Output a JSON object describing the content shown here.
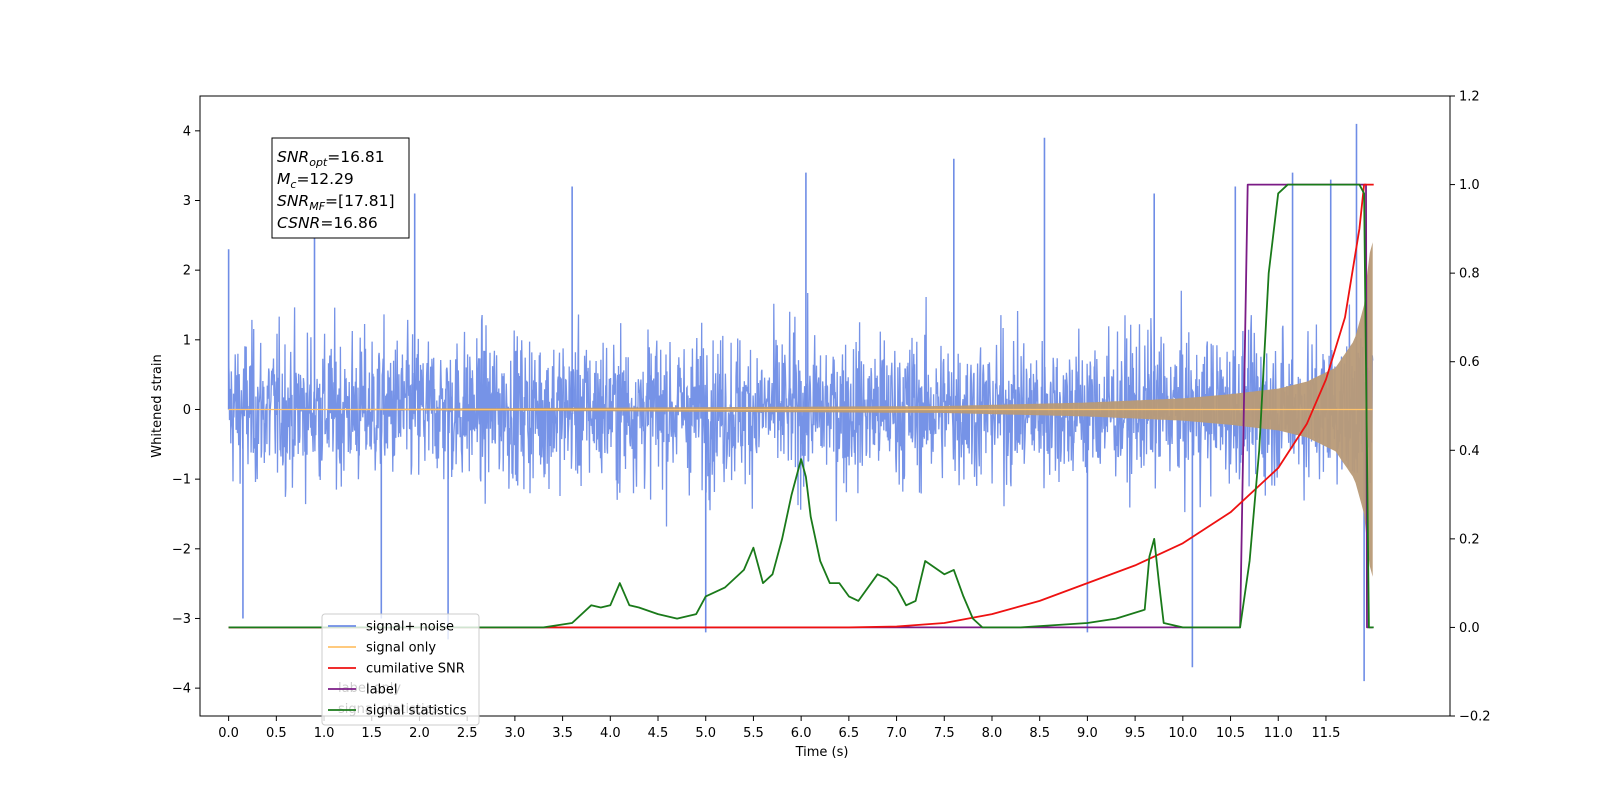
{
  "chart_data": {
    "type": "line",
    "xlabel": "Time (s)",
    "ylabel": "Whitened strain",
    "xlim": [
      -0.3,
      12.8
    ],
    "ylim": [
      -4.4,
      4.5
    ],
    "ylim_right": [
      -0.2,
      1.2
    ],
    "x_ticks": [
      "0.0",
      "0.5",
      "1.0",
      "1.5",
      "2.0",
      "2.5",
      "3.0",
      "3.5",
      "4.0",
      "4.5",
      "5.0",
      "5.5",
      "6.0",
      "6.5",
      "7.0",
      "7.5",
      "8.0",
      "8.5",
      "9.0",
      "9.5",
      "10.0",
      "10.5",
      "11.0",
      "11.5"
    ],
    "y_ticks_left": [
      "4",
      "3",
      "2",
      "1",
      "0",
      "−1",
      "−2",
      "−3",
      "−4"
    ],
    "y_ticks_right": [
      "1.2",
      "1.0",
      "0.8",
      "0.6",
      "0.4",
      "0.2",
      "0.0",
      "−0.2"
    ],
    "legend": {
      "position": "lower-left",
      "entries": [
        {
          "label": "signal+ noise",
          "color": "#6f8de6"
        },
        {
          "label": "signal only",
          "color": "#ffc36b"
        },
        {
          "label": "cumilative SNR",
          "color": "#ee1111"
        },
        {
          "label": "label",
          "color": "#7b1b86"
        },
        {
          "label": "signal statistics",
          "color": "#1a7a1a"
        }
      ],
      "obscured_text": [
        "label only",
        "signal statistics"
      ]
    },
    "annotation": {
      "lines": [
        {
          "sym": "SNR",
          "sub": "opt",
          "value": "=16.81"
        },
        {
          "sym": "M",
          "sub": "c",
          "value": "=12.29"
        },
        {
          "sym": "SNR",
          "sub": "MF",
          "value": "=[17.81]"
        },
        {
          "sym": "CSNR",
          "sub": "",
          "value": "=16.86"
        }
      ]
    },
    "series": [
      {
        "name": "signal+ noise",
        "axis": "left",
        "color": "#6f8de6",
        "noise_envelope": {
          "x_start": 0.0,
          "x_end": 11.99,
          "typical_low": -1.9,
          "typical_high": 2.0
        },
        "spikes_x": [
          0.0,
          0.15,
          0.9,
          1.6,
          1.95,
          2.3,
          3.6,
          5.0,
          6.05,
          7.6,
          8.55,
          9.0,
          9.7,
          10.1,
          10.55,
          11.15,
          11.55,
          11.82,
          11.9
        ],
        "spikes_y": [
          2.3,
          -3.0,
          2.8,
          -3.0,
          3.1,
          -3.3,
          3.2,
          -3.2,
          3.4,
          3.6,
          3.9,
          -3.2,
          3.1,
          -3.7,
          3.2,
          3.4,
          3.3,
          4.1,
          -3.9
        ]
      },
      {
        "name": "signal only",
        "axis": "left",
        "color": "#ffc36b",
        "chirp_x": [
          0.0,
          7.5,
          9.0,
          10.0,
          10.5,
          11.0,
          11.3,
          11.6,
          11.8,
          11.9,
          11.95,
          11.99
        ],
        "chirp_amplitude": [
          0.0,
          0.05,
          0.1,
          0.16,
          0.22,
          0.3,
          0.4,
          0.6,
          1.0,
          1.5,
          2.2,
          2.4
        ]
      },
      {
        "name": "cumilative SNR",
        "axis": "right",
        "color": "#ee1111",
        "x": [
          0.0,
          6.5,
          7.0,
          7.5,
          8.0,
          8.5,
          9.0,
          9.5,
          10.0,
          10.5,
          11.0,
          11.3,
          11.5,
          11.7,
          11.85,
          11.9,
          11.95,
          12.0
        ],
        "y": [
          0.0,
          0.0,
          0.002,
          0.01,
          0.03,
          0.06,
          0.1,
          0.14,
          0.19,
          0.26,
          0.36,
          0.46,
          0.56,
          0.7,
          0.9,
          1.0,
          1.0,
          1.0
        ]
      },
      {
        "name": "label",
        "axis": "right",
        "color": "#7b1b86",
        "x": [
          0.0,
          10.6,
          10.68,
          11.92,
          11.93,
          11.99
        ],
        "y": [
          0.0,
          0.0,
          1.0,
          1.0,
          0.0,
          0.0
        ]
      },
      {
        "name": "signal statistics",
        "axis": "right",
        "color": "#1a7a1a",
        "x": [
          0.0,
          2.3,
          3.3,
          3.6,
          3.8,
          3.9,
          4.0,
          4.1,
          4.2,
          4.3,
          4.5,
          4.7,
          4.9,
          5.0,
          5.2,
          5.4,
          5.5,
          5.6,
          5.7,
          5.8,
          5.9,
          6.0,
          6.05,
          6.1,
          6.2,
          6.3,
          6.4,
          6.5,
          6.6,
          6.8,
          6.9,
          7.0,
          7.1,
          7.2,
          7.3,
          7.5,
          7.6,
          7.7,
          7.8,
          7.9,
          8.0,
          8.3,
          9.0,
          9.3,
          9.6,
          9.65,
          9.7,
          9.75,
          9.8,
          10.0,
          10.5,
          10.6,
          10.7,
          10.8,
          10.9,
          11.0,
          11.1,
          11.2,
          11.5,
          11.85,
          11.9,
          11.95,
          12.0
        ],
        "y": [
          0.0,
          0.0,
          0.0,
          0.01,
          0.05,
          0.045,
          0.05,
          0.1,
          0.05,
          0.045,
          0.03,
          0.02,
          0.03,
          0.07,
          0.09,
          0.13,
          0.18,
          0.1,
          0.12,
          0.2,
          0.3,
          0.38,
          0.34,
          0.25,
          0.15,
          0.1,
          0.1,
          0.07,
          0.06,
          0.12,
          0.11,
          0.09,
          0.05,
          0.06,
          0.15,
          0.12,
          0.13,
          0.07,
          0.02,
          0.0,
          0.0,
          0.0,
          0.01,
          0.02,
          0.04,
          0.16,
          0.2,
          0.1,
          0.01,
          0.0,
          0.0,
          0.0,
          0.15,
          0.4,
          0.8,
          0.98,
          1.0,
          1.0,
          1.0,
          1.0,
          0.98,
          0.0,
          0.0
        ]
      }
    ]
  }
}
